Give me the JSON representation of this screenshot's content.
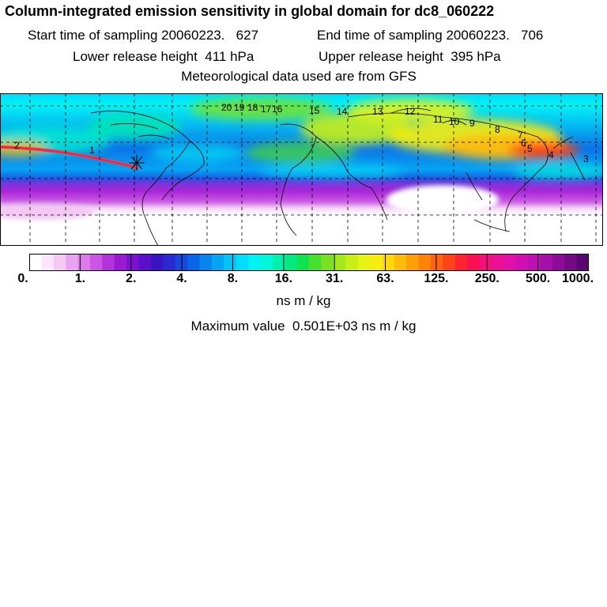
{
  "header": {
    "title": "Column-integrated emission sensitivity in global domain for dc8_060222",
    "start_label": "Start time of sampling 20060223.",
    "start_time": "627",
    "end_label": "End time of sampling 20060223.",
    "end_time": "706",
    "lower_label": "Lower release height",
    "lower_value": "411 hPa",
    "upper_label": "Upper release height",
    "upper_value": "395 hPa",
    "met_line": "Meteorological data used are from GFS"
  },
  "map": {
    "trajectory_labels": [
      "20",
      "19",
      "18",
      "17",
      "16",
      "15",
      "14",
      "13",
      "12",
      "11",
      "10",
      "9",
      "8",
      "7",
      "6",
      "5",
      "4",
      "3",
      "2",
      "1"
    ]
  },
  "colorbar": {
    "tick_labels": [
      "0.",
      "1.",
      "2.",
      "4.",
      "8.",
      "16.",
      "31.",
      "63.",
      "125.",
      "250.",
      "500.",
      "1000."
    ],
    "colors": [
      "#ffffff",
      "#fbe6fb",
      "#f3c8f3",
      "#e9a4ef",
      "#dc7ce9",
      "#cc55e3",
      "#b432dc",
      "#9a1ad3",
      "#7c10d0",
      "#5a10c8",
      "#3a14c0",
      "#2a28cf",
      "#1a46dc",
      "#0a64e6",
      "#0884ee",
      "#06a4f3",
      "#04c4f7",
      "#00dcfa",
      "#00f2f5",
      "#00f6d8",
      "#00f0b0",
      "#00ea80",
      "#10e250",
      "#48e030",
      "#7ae024",
      "#a4e81c",
      "#c8ee18",
      "#e4f214",
      "#f6ee10",
      "#fcd80c",
      "#fcbc0a",
      "#fca008",
      "#fc8208",
      "#fc6410",
      "#fc4418",
      "#fc2430",
      "#fa1050",
      "#f4107a",
      "#ec1096",
      "#e010a8",
      "#d010b0",
      "#bc10b0",
      "#a410a8",
      "#8c0c98",
      "#720a84",
      "#5a0870"
    ]
  },
  "footer": {
    "units": "ns m / kg",
    "max_label": "Maximum value",
    "max_value": "0.501E+03",
    "max_units": "ns m / kg"
  }
}
